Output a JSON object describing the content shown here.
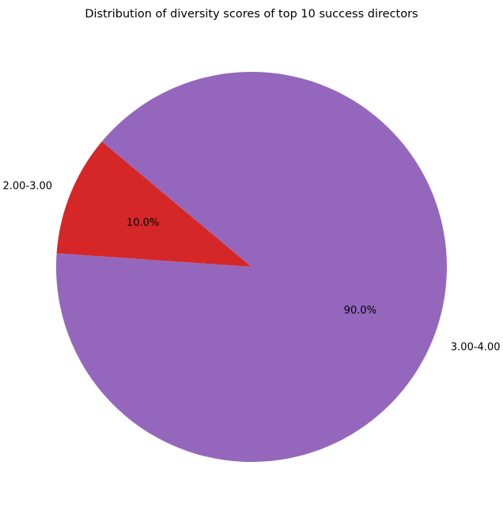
{
  "chart_data": {
    "type": "pie",
    "title": "Distribution of diversity scores of top 10 success directors",
    "slices": [
      {
        "label": "2.00-3.00",
        "value": 10.0,
        "pct_label": "10.0%",
        "color": "#d62728"
      },
      {
        "label": "3.00-4.00",
        "value": 90.0,
        "pct_label": "90.0%",
        "color": "#9467bd"
      }
    ],
    "start_angle_deg": 140,
    "direction": "counterclockwise"
  }
}
